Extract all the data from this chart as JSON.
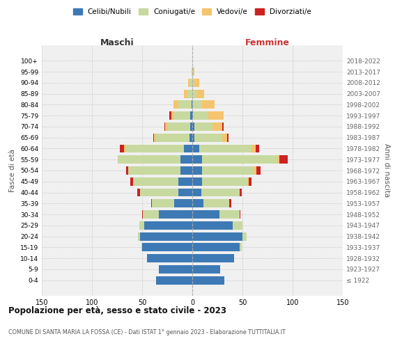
{
  "age_groups": [
    "100+",
    "95-99",
    "90-94",
    "85-89",
    "80-84",
    "75-79",
    "70-74",
    "65-69",
    "60-64",
    "55-59",
    "50-54",
    "45-49",
    "40-44",
    "35-39",
    "30-34",
    "25-29",
    "20-24",
    "15-19",
    "10-14",
    "5-9",
    "0-4"
  ],
  "birth_years": [
    "≤ 1922",
    "1923-1927",
    "1928-1932",
    "1933-1937",
    "1938-1942",
    "1943-1947",
    "1948-1952",
    "1953-1957",
    "1958-1962",
    "1963-1967",
    "1968-1972",
    "1973-1977",
    "1978-1982",
    "1983-1987",
    "1988-1992",
    "1993-1997",
    "1998-2002",
    "2003-2007",
    "2008-2012",
    "2013-2017",
    "2018-2022"
  ],
  "maschi": {
    "celibi": [
      0,
      0,
      0,
      0,
      1,
      2,
      2,
      3,
      8,
      12,
      12,
      14,
      14,
      18,
      33,
      48,
      52,
      50,
      45,
      33,
      36
    ],
    "coniugati": [
      0,
      1,
      3,
      5,
      13,
      16,
      22,
      33,
      58,
      62,
      52,
      45,
      38,
      22,
      16,
      5,
      2,
      1,
      0,
      0,
      0
    ],
    "vedovi": [
      0,
      0,
      1,
      3,
      5,
      3,
      3,
      2,
      2,
      0,
      0,
      0,
      0,
      0,
      0,
      0,
      0,
      0,
      0,
      0,
      0
    ],
    "divorziati": [
      0,
      0,
      0,
      0,
      0,
      2,
      1,
      1,
      4,
      0,
      2,
      3,
      3,
      1,
      1,
      0,
      0,
      0,
      0,
      0,
      0
    ]
  },
  "femmine": {
    "nubili": [
      0,
      0,
      0,
      0,
      0,
      1,
      2,
      2,
      7,
      10,
      10,
      10,
      9,
      11,
      27,
      40,
      50,
      47,
      42,
      28,
      32
    ],
    "coniugate": [
      0,
      1,
      2,
      4,
      10,
      15,
      18,
      28,
      52,
      75,
      52,
      45,
      38,
      26,
      20,
      10,
      4,
      2,
      0,
      0,
      0
    ],
    "vedove": [
      0,
      1,
      5,
      8,
      12,
      15,
      10,
      5,
      4,
      2,
      2,
      1,
      0,
      0,
      0,
      0,
      0,
      0,
      0,
      0,
      0
    ],
    "divorziate": [
      0,
      0,
      0,
      0,
      0,
      0,
      1,
      1,
      4,
      8,
      4,
      3,
      2,
      2,
      1,
      0,
      0,
      0,
      0,
      0,
      0
    ]
  },
  "colors": {
    "celibi_nubili": "#3d7ab5",
    "coniugati": "#c8d9a0",
    "vedovi": "#f5c46e",
    "divorziati": "#cc2222"
  },
  "xlim": 150,
  "title": "Popolazione per età, sesso e stato civile - 2023",
  "subtitle": "COMUNE DI SANTA MARIA LA FOSSA (CE) - Dati ISTAT 1° gennaio 2023 - Elaborazione TUTTITALIA.IT",
  "xlabel_left": "Maschi",
  "xlabel_right": "Femmine",
  "ylabel_left": "Fasce di età",
  "ylabel_right": "Anni di nascita",
  "legend_labels": [
    "Celibi/Nubili",
    "Coniugati/e",
    "Vedovi/e",
    "Divorziati/e"
  ],
  "bg_color": "#ffffff",
  "grid_color": "#cccccc"
}
